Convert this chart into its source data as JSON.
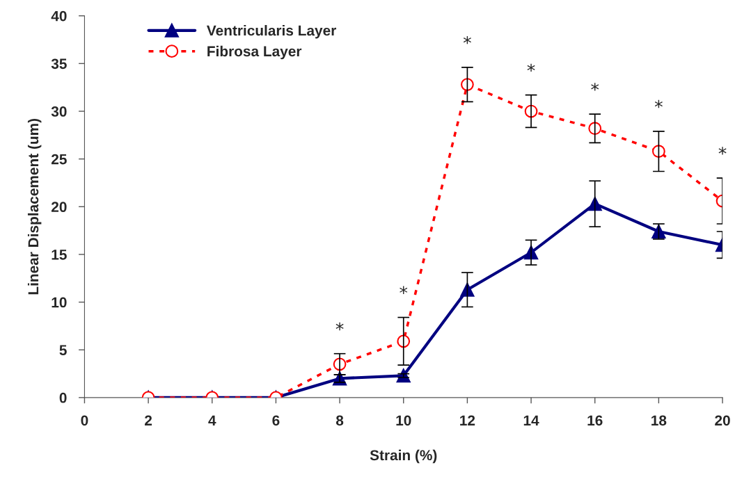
{
  "chart_data": {
    "type": "line",
    "xlabel": "Strain (%)",
    "ylabel": "Linear Displacement (um)",
    "x": [
      2,
      4,
      6,
      8,
      10,
      12,
      14,
      16,
      18,
      20
    ],
    "series": [
      {
        "name": "Ventricularis Layer",
        "color": "#000080",
        "marker": "triangle",
        "line_style": "solid",
        "values": [
          0,
          0,
          0,
          2.0,
          2.3,
          11.3,
          15.2,
          20.3,
          17.4,
          16.0
        ],
        "errors": [
          null,
          null,
          null,
          0.4,
          0.2,
          1.8,
          1.3,
          2.4,
          0.8,
          1.4
        ]
      },
      {
        "name": "Fibrosa Layer",
        "color": "#ff0000",
        "marker": "circle",
        "line_style": "dashed",
        "values": [
          0,
          0,
          0,
          3.5,
          5.9,
          32.8,
          30.0,
          28.2,
          25.8,
          20.6
        ],
        "errors": [
          null,
          null,
          null,
          1.1,
          2.5,
          1.8,
          1.7,
          1.5,
          2.1,
          2.4
        ]
      }
    ],
    "xlim": [
      0,
      20
    ],
    "xticks": [
      0,
      2,
      4,
      6,
      8,
      10,
      12,
      14,
      16,
      18,
      20
    ],
    "ylim": [
      0,
      40
    ],
    "yticks": [
      0,
      5,
      10,
      15,
      20,
      25,
      30,
      35,
      40
    ],
    "grid": false,
    "legend": "top left",
    "annotations": [
      {
        "text": "*",
        "x": 8,
        "y": 3.5
      },
      {
        "text": "*",
        "x": 10,
        "y": 5.9
      },
      {
        "text": "*",
        "x": 12,
        "y": 32.8
      },
      {
        "text": "*",
        "x": 14,
        "y": 30.0
      },
      {
        "text": "*",
        "x": 16,
        "y": 28.2
      },
      {
        "text": "*",
        "x": 18,
        "y": 25.8
      },
      {
        "text": "*",
        "x": 20,
        "y": 20.6
      }
    ]
  }
}
